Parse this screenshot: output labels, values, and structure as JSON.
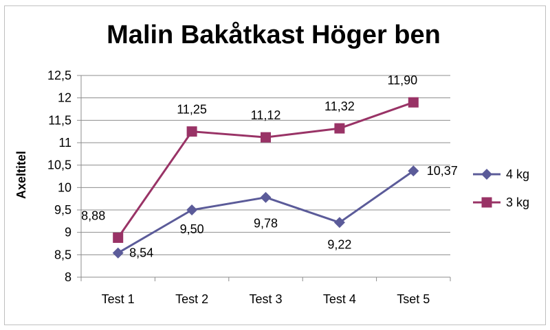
{
  "chart_data": {
    "type": "line",
    "title": "Malin Bakåtkast Höger ben",
    "ylabel": "Axeltitel",
    "xlabel": "",
    "categories": [
      "Test 1",
      "Test 2",
      "Test 3",
      "Test 4",
      "Tset 5"
    ],
    "ylim": [
      8,
      12.5
    ],
    "ytick_step": 0.5,
    "ytick_labels": [
      "8",
      "8,5",
      "9",
      "9,5",
      "10",
      "10,5",
      "11",
      "11,5",
      "12",
      "12,5"
    ],
    "grid": true,
    "legend_position": "right",
    "series": [
      {
        "name": "4 kg",
        "values": [
          8.54,
          9.5,
          9.78,
          9.22,
          10.37
        ],
        "labels": [
          "8,54",
          "9,50",
          "9,78",
          "9,22",
          "10,37"
        ],
        "color": "#5b5b99",
        "marker": "diamond"
      },
      {
        "name": "3 kg",
        "values": [
          8.88,
          11.25,
          11.12,
          11.32,
          11.9
        ],
        "labels": [
          "8,88",
          "11,25",
          "11,12",
          "11,32",
          "11,90"
        ],
        "color": "#993366",
        "marker": "square"
      }
    ]
  }
}
